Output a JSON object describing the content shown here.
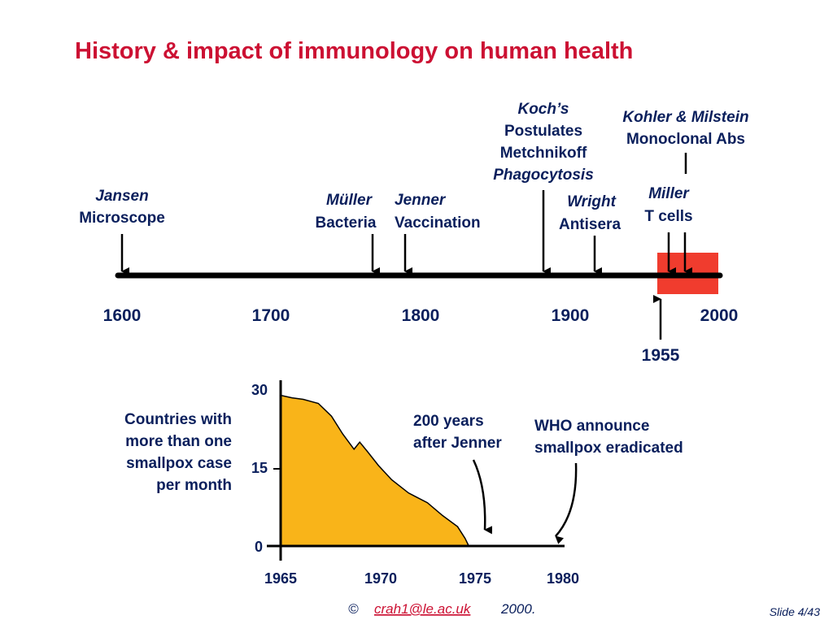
{
  "title": "History & impact of immunology on human health",
  "timeline": {
    "year_labels": [
      "1600",
      "1700",
      "1800",
      "1900",
      "2000"
    ],
    "highlight_start_label": "1955",
    "events": [
      {
        "lines": [
          "Jansen",
          "Microscope"
        ],
        "italic": [
          true,
          false
        ]
      },
      {
        "lines": [
          "Müller",
          "Bacteria"
        ],
        "italic": [
          true,
          false
        ]
      },
      {
        "lines": [
          "Jenner",
          "Vaccination"
        ],
        "italic": [
          true,
          false
        ]
      },
      {
        "lines": [
          "Koch’s",
          "Postulates",
          "Metchnikoff",
          "Phagocytosis"
        ],
        "italic": [
          true,
          false,
          false,
          true
        ]
      },
      {
        "lines": [
          "Wright",
          "Antisera"
        ],
        "italic": [
          true,
          false
        ]
      },
      {
        "lines": [
          "Kohler & Milstein",
          "Monoclonal Abs"
        ],
        "italic": [
          true,
          false
        ]
      },
      {
        "lines": [
          "Miller",
          "T cells"
        ],
        "italic": [
          true,
          false
        ]
      }
    ],
    "colors": {
      "highlight": "#f03c2e",
      "line": "#000000"
    }
  },
  "chart_data": {
    "type": "area",
    "ylabel": "Countries with more than one smallpox case per month",
    "ylabel_lines": [
      "Countries with",
      "more than one",
      "smallpox case",
      "per month"
    ],
    "y_ticks": [
      "30",
      "15",
      "0"
    ],
    "x_ticks": [
      "1965",
      "1970",
      "1975",
      "1980"
    ],
    "xlim": [
      1965,
      1980
    ],
    "ylim": [
      0,
      30
    ],
    "series": [
      {
        "x": [
          1965,
          1965.6,
          1966.2,
          1967,
          1967.7,
          1968.3,
          1968.9,
          1969.2,
          1969.6,
          1970.2,
          1970.9,
          1971.8,
          1972.8,
          1973.6,
          1974.4,
          1974.8,
          1975.0
        ],
        "y": [
          29.6,
          29.1,
          28.8,
          28.0,
          25.5,
          22.0,
          19.0,
          20.4,
          18.6,
          15.8,
          13.0,
          10.4,
          8.5,
          6.0,
          3.8,
          1.5,
          0
        ]
      }
    ],
    "annotations": [
      {
        "lines": [
          "200 years",
          "after Jenner"
        ]
      },
      {
        "lines": [
          "WHO announce",
          "smallpox eradicated"
        ]
      }
    ],
    "colors": {
      "fill": "#f9b419"
    }
  },
  "footer": {
    "copyright": "©",
    "email": "crah1@le.ac.uk",
    "year": "2000.",
    "slide": "Slide 4/43"
  }
}
